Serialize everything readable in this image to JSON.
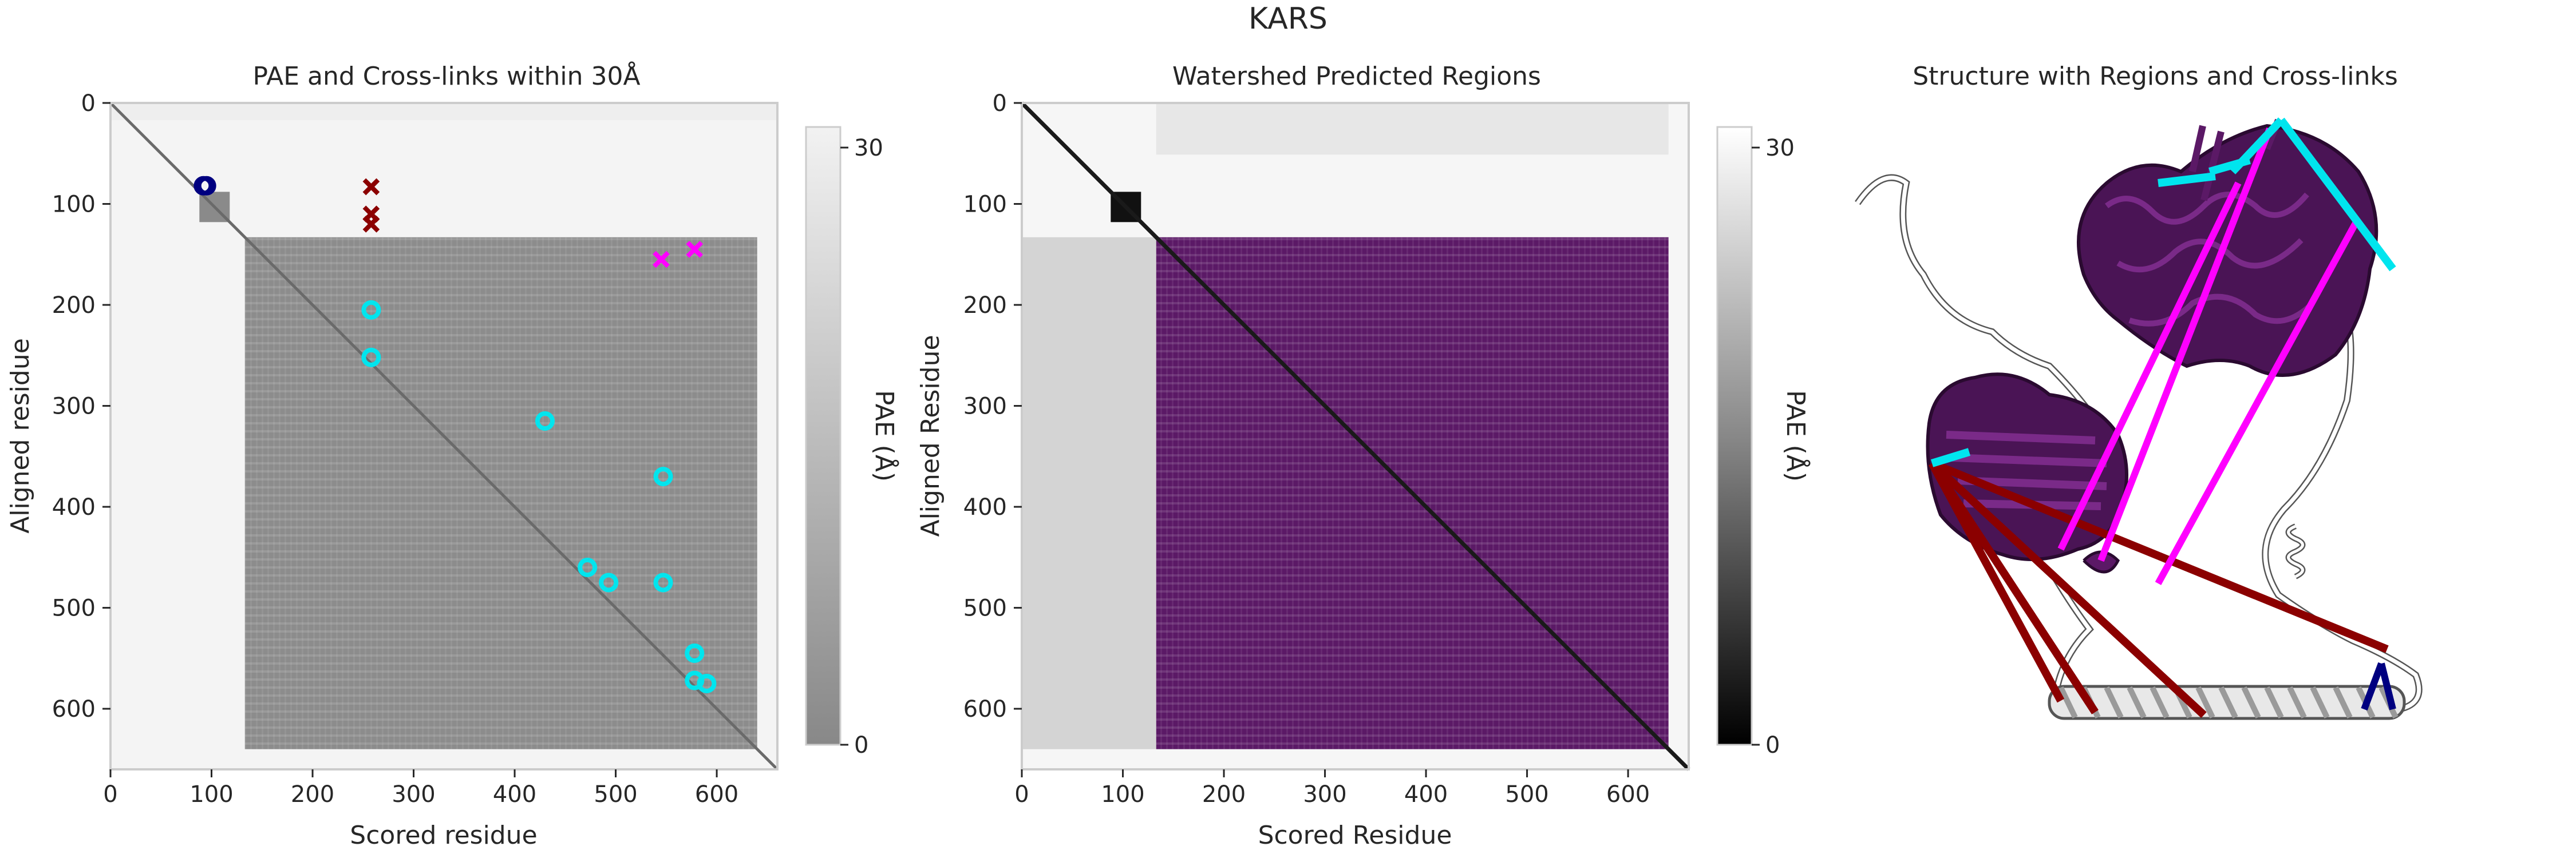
{
  "figure": {
    "title": "KARS"
  },
  "colors": {
    "pae_mid": "#8c8c8c",
    "pae_light": "#f4f4f4",
    "region_purple": "#5b1966",
    "crosslink_ok": "#00e5ee",
    "crosslink_bad": "#8b0000",
    "crosslink_magenta": "#ff00ff",
    "crosslink_navy": "#000080"
  },
  "chart_data": [
    {
      "type": "heatmap",
      "title": "PAE and Cross-links within 30Å",
      "xlabel": "Scored residue",
      "ylabel": "Aligned residue",
      "xlim": [
        0,
        660
      ],
      "ylim": [
        660,
        0
      ],
      "xticks": [
        "0",
        "100",
        "200",
        "300",
        "400",
        "500",
        "600"
      ],
      "yticks": [
        "0",
        "100",
        "200",
        "300",
        "400",
        "500",
        "600"
      ],
      "colorbar": {
        "label": "PAE (Å)",
        "ticks": [
          "30",
          "0"
        ],
        "range": [
          0,
          32
        ]
      },
      "block": {
        "start": 133,
        "end": 640
      },
      "markers": [
        {
          "x": 92,
          "y": 82,
          "kind": "circle",
          "color": "#000080"
        },
        {
          "x": 95,
          "y": 82,
          "kind": "circle",
          "color": "#000080"
        },
        {
          "x": 258,
          "y": 83,
          "kind": "cross",
          "color": "#8b0000"
        },
        {
          "x": 258,
          "y": 110,
          "kind": "cross",
          "color": "#8b0000"
        },
        {
          "x": 258,
          "y": 120,
          "kind": "cross",
          "color": "#8b0000"
        },
        {
          "x": 545,
          "y": 155,
          "kind": "cross",
          "color": "#ff00ff"
        },
        {
          "x": 578,
          "y": 145,
          "kind": "cross",
          "color": "#ff00ff"
        },
        {
          "x": 258,
          "y": 205,
          "kind": "circle",
          "color": "#00e5ee"
        },
        {
          "x": 258,
          "y": 252,
          "kind": "circle",
          "color": "#00e5ee"
        },
        {
          "x": 430,
          "y": 315,
          "kind": "circle",
          "color": "#00e5ee"
        },
        {
          "x": 547,
          "y": 370,
          "kind": "circle",
          "color": "#00e5ee"
        },
        {
          "x": 472,
          "y": 460,
          "kind": "circle",
          "color": "#00e5ee"
        },
        {
          "x": 493,
          "y": 475,
          "kind": "circle",
          "color": "#00e5ee"
        },
        {
          "x": 547,
          "y": 475,
          "kind": "circle",
          "color": "#00e5ee"
        },
        {
          "x": 578,
          "y": 545,
          "kind": "circle",
          "color": "#00e5ee"
        },
        {
          "x": 578,
          "y": 572,
          "kind": "circle",
          "color": "#00e5ee"
        },
        {
          "x": 590,
          "y": 575,
          "kind": "circle",
          "color": "#00e5ee"
        }
      ]
    },
    {
      "type": "heatmap",
      "title": "Watershed Predicted Regions",
      "xlabel": "Scored Residue",
      "ylabel": "Aligned Residue",
      "xlim": [
        0,
        660
      ],
      "ylim": [
        660,
        0
      ],
      "xticks": [
        "0",
        "100",
        "200",
        "300",
        "400",
        "500",
        "600"
      ],
      "yticks": [
        "0",
        "100",
        "200",
        "300",
        "400",
        "500",
        "600"
      ],
      "colorbar": {
        "label": "PAE (Å)",
        "ticks": [
          "30",
          "0"
        ],
        "range": [
          0,
          32
        ]
      },
      "regions": [
        {
          "start": 133,
          "end": 640,
          "color": "#5b1966"
        }
      ]
    }
  ],
  "structure": {
    "title": "Structure with Regions and Cross-links"
  }
}
